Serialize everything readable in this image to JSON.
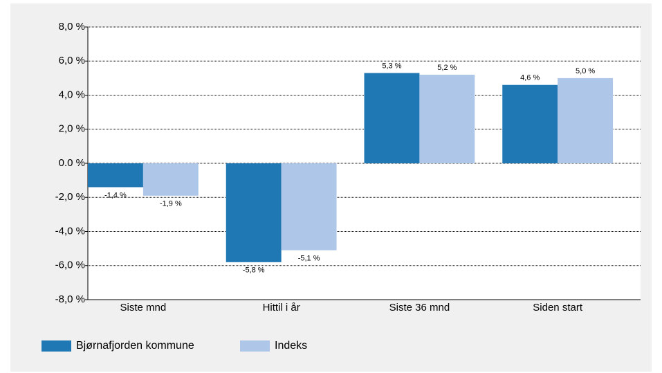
{
  "chart_data": {
    "type": "bar",
    "categories": [
      "Siste mnd",
      "Hittil i år",
      "Siste 36 mnd",
      "Siden start"
    ],
    "series": [
      {
        "name": "Bjørnafjorden kommune",
        "color": "#1f77b4",
        "values": [
          -1.4,
          -5.8,
          5.3,
          4.6
        ],
        "value_labels": [
          "-1,4 %",
          "-5,8 %",
          "5,3 %",
          "4,6 %"
        ]
      },
      {
        "name": "Indeks",
        "color": "#aec7e8",
        "values": [
          -1.9,
          -5.1,
          5.2,
          5.0
        ],
        "value_labels": [
          "-1,9 %",
          "-5,1 %",
          "5,2 %",
          "5,0 %"
        ]
      }
    ],
    "ylim": [
      -8,
      8
    ],
    "yticks": [
      {
        "value": 8,
        "label": "8,0 %"
      },
      {
        "value": 6,
        "label": "6,0 %"
      },
      {
        "value": 4,
        "label": "4,0 %"
      },
      {
        "value": 2,
        "label": "2,0 %"
      },
      {
        "value": 0,
        "label": "0.0 %"
      },
      {
        "value": -2,
        "label": "-2,0 %"
      },
      {
        "value": -4,
        "label": "-4,0 %"
      },
      {
        "value": -6,
        "label": "-6,0 %"
      },
      {
        "value": -8,
        "label": "-8,0 %"
      }
    ],
    "grid": true,
    "legend": "bottom-left"
  }
}
